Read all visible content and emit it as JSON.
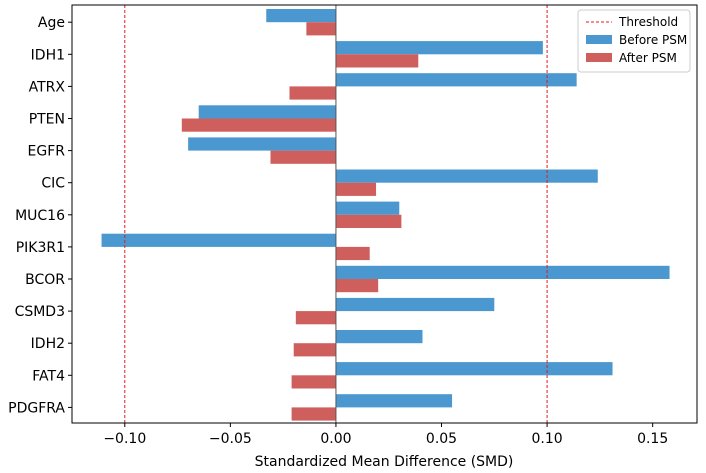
{
  "chart_data": {
    "type": "bar",
    "orientation": "horizontal",
    "categories": [
      "Age",
      "IDH1",
      "ATRX",
      "PTEN",
      "EGFR",
      "CIC",
      "MUC16",
      "PIK3R1",
      "BCOR",
      "CSMD3",
      "IDH2",
      "FAT4",
      "PDGFRA"
    ],
    "series": [
      {
        "name": "Before PSM",
        "color": "#4a98cf",
        "values": [
          -0.033,
          0.098,
          0.114,
          -0.065,
          -0.07,
          0.124,
          0.03,
          -0.111,
          0.158,
          0.075,
          0.041,
          0.131,
          0.055
        ]
      },
      {
        "name": "After PSM",
        "color": "#cf5f5d",
        "values": [
          -0.014,
          0.039,
          -0.022,
          -0.073,
          -0.031,
          0.019,
          0.031,
          0.016,
          0.02,
          -0.019,
          -0.02,
          -0.021,
          -0.021
        ]
      }
    ],
    "threshold": {
      "label": "Threshold",
      "values": [
        -0.1,
        0.1
      ],
      "color": "#e41a1c"
    },
    "xlabel": "Standardized Mean Difference (SMD)",
    "ylabel": "",
    "xlim": [
      -0.125,
      0.171
    ],
    "xticks": [
      -0.1,
      -0.05,
      0.0,
      0.05,
      0.1,
      0.15
    ],
    "xtick_labels": [
      "−0.10",
      "−0.05",
      "0.00",
      "0.05",
      "0.10",
      "0.15"
    ],
    "grid": false,
    "legend_position": "top-right"
  }
}
